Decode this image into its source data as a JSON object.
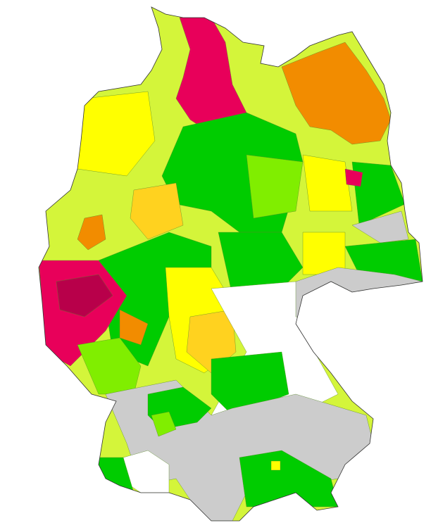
{
  "map": {
    "colors": [
      "#e8005a",
      "#f28c00",
      "#ffd21f",
      "#ffff00",
      "#d4f53a",
      "#80ee00",
      "#00cc00",
      "#cccccc",
      "#ffffff",
      "#b8004a"
    ]
  }
}
